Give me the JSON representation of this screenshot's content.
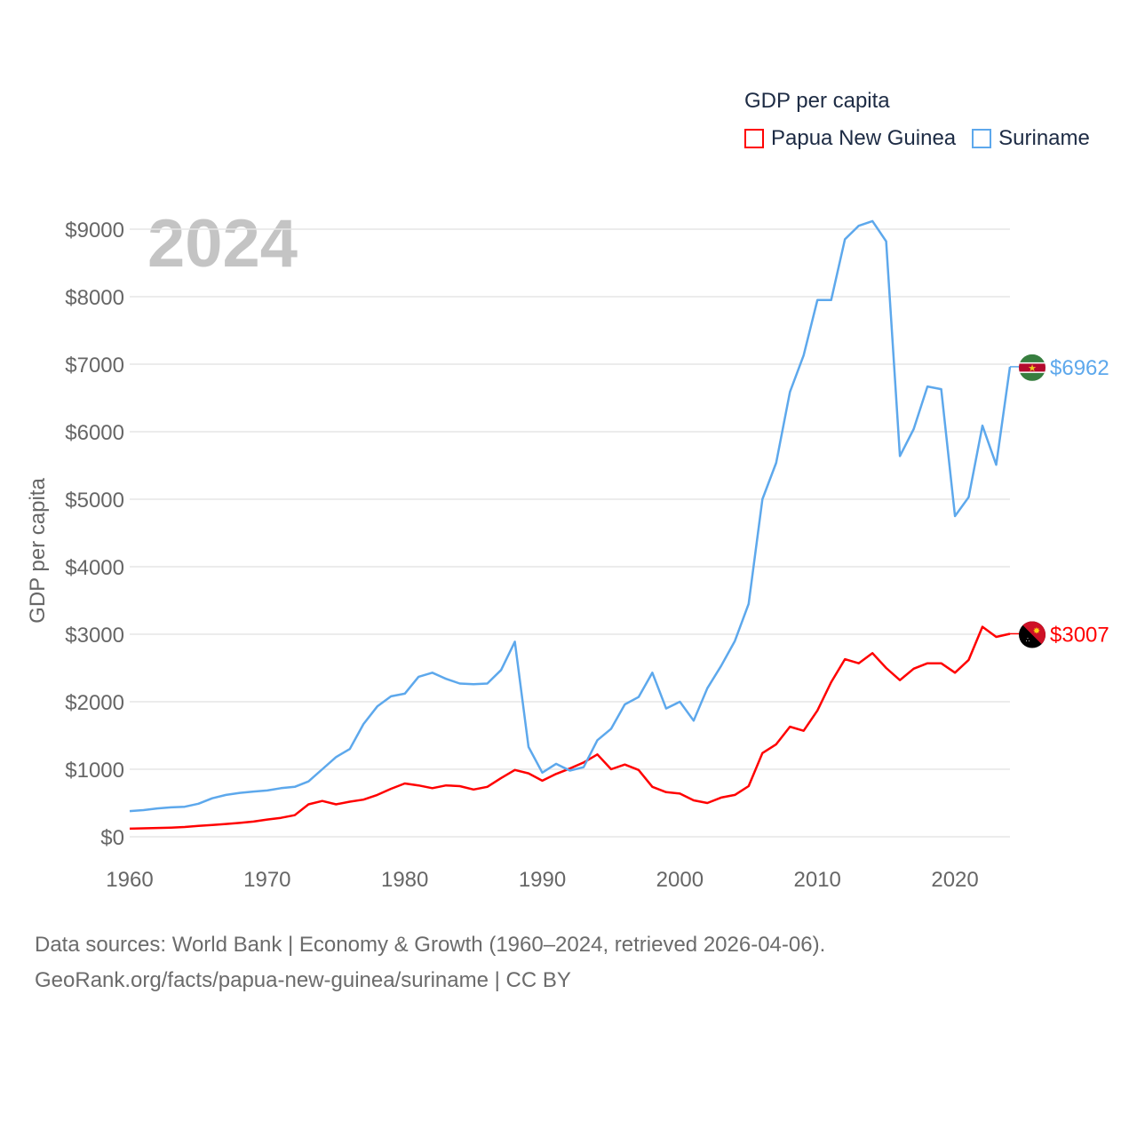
{
  "chart_data": {
    "type": "line",
    "title": "GDP per capita",
    "year_label": "2024",
    "xlabel": "",
    "ylabel": "GDP per capita",
    "xlim": [
      1960,
      2024
    ],
    "ylim": [
      0,
      9000
    ],
    "x_ticks": [
      1960,
      1970,
      1980,
      1990,
      2000,
      2010,
      2020
    ],
    "y_ticks": [
      0,
      1000,
      2000,
      3000,
      4000,
      5000,
      6000,
      7000,
      8000,
      9000
    ],
    "y_tick_labels": [
      "$0",
      "$1000",
      "$2000",
      "$3000",
      "$4000",
      "$5000",
      "$6000",
      "$7000",
      "$8000",
      "$9000"
    ],
    "grid": true,
    "legend_placement": "top-right",
    "x": [
      1960,
      1961,
      1962,
      1963,
      1964,
      1965,
      1966,
      1967,
      1968,
      1969,
      1970,
      1971,
      1972,
      1973,
      1974,
      1975,
      1976,
      1977,
      1978,
      1979,
      1980,
      1981,
      1982,
      1983,
      1984,
      1985,
      1986,
      1987,
      1988,
      1989,
      1990,
      1991,
      1992,
      1993,
      1994,
      1995,
      1996,
      1997,
      1998,
      1999,
      2000,
      2001,
      2002,
      2003,
      2004,
      2005,
      2006,
      2007,
      2008,
      2009,
      2010,
      2011,
      2012,
      2013,
      2014,
      2015,
      2016,
      2017,
      2018,
      2019,
      2020,
      2021,
      2022,
      2023,
      2024
    ],
    "series": [
      {
        "name": "Papua New Guinea",
        "color": "#ff0000",
        "end_label": "$3007",
        "values": [
          120,
          125,
          130,
          135,
          145,
          160,
          175,
          190,
          205,
          225,
          255,
          280,
          320,
          480,
          530,
          480,
          520,
          550,
          620,
          710,
          790,
          760,
          720,
          760,
          750,
          700,
          740,
          870,
          990,
          940,
          830,
          930,
          1010,
          1100,
          1220,
          1000,
          1070,
          990,
          740,
          660,
          640,
          540,
          500,
          580,
          620,
          750,
          1240,
          1370,
          1630,
          1570,
          1870,
          2290,
          2630,
          2570,
          2720,
          2500,
          2320,
          2490,
          2570,
          2570,
          2430,
          2620,
          3110,
          2960,
          3007
        ]
      },
      {
        "name": "Suriname",
        "color": "#5da8ec",
        "end_label": "$6962",
        "values": [
          380,
          395,
          420,
          435,
          445,
          490,
          570,
          620,
          650,
          670,
          685,
          720,
          740,
          820,
          1000,
          1180,
          1300,
          1670,
          1930,
          2080,
          2120,
          2370,
          2430,
          2340,
          2270,
          2260,
          2270,
          2470,
          2890,
          1330,
          950,
          1080,
          980,
          1030,
          1430,
          1600,
          1960,
          2070,
          2430,
          1900,
          2000,
          1720,
          2200,
          2530,
          2900,
          3450,
          5000,
          5540,
          6590,
          7130,
          7950,
          7950,
          8850,
          9050,
          9120,
          8820,
          5640,
          6040,
          6670,
          6630,
          4750,
          5030,
          6090,
          5510,
          6962
        ]
      }
    ]
  },
  "footer": {
    "line1": "Data sources: World Bank | Economy & Growth (1960–2024, retrieved 2026-04-06).",
    "line2": "GeoRank.org/facts/papua-new-guinea/suriname | CC BY"
  }
}
